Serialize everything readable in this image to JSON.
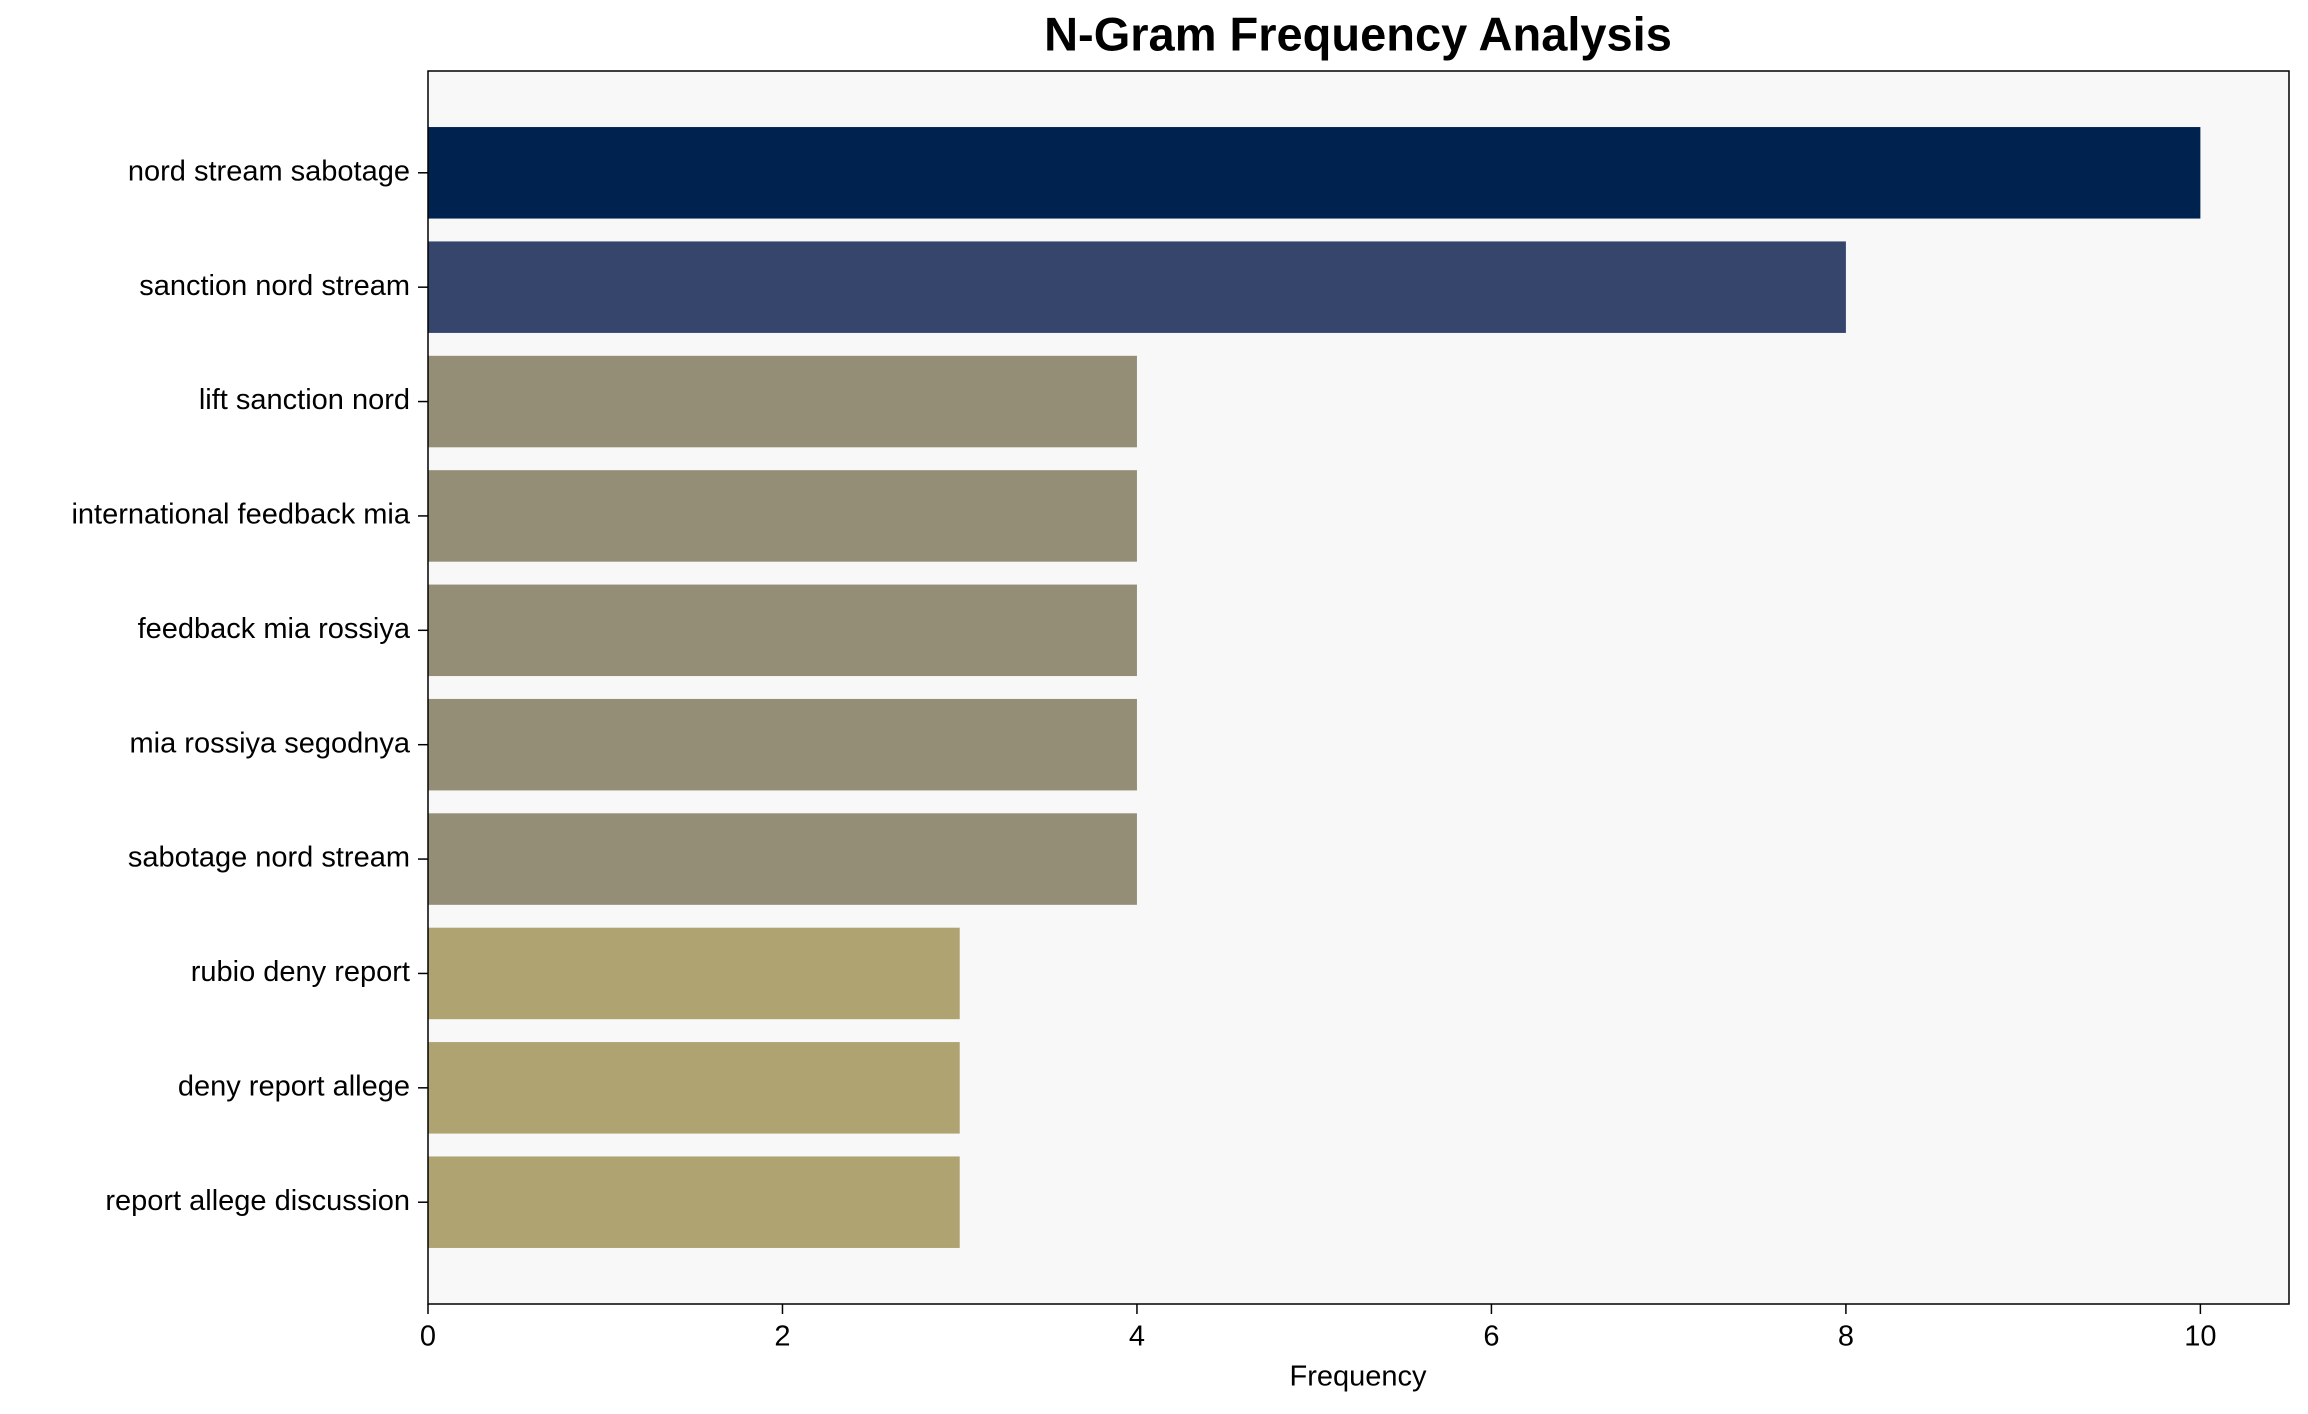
{
  "chart_data": {
    "type": "bar",
    "orientation": "horizontal",
    "title": "N-Gram Frequency Analysis",
    "x_label": "Frequency",
    "categories": [
      "nord stream sabotage",
      "sanction nord stream",
      "lift sanction nord",
      "international feedback mia",
      "feedback mia rossiya",
      "mia rossiya segodnya",
      "sabotage nord stream",
      "rubio deny report",
      "deny report allege",
      "report allege discussion"
    ],
    "values": [
      10,
      8,
      4,
      4,
      4,
      4,
      4,
      3,
      3,
      3
    ],
    "colors": [
      "#00224e",
      "#35456c",
      "#948e77",
      "#948e77",
      "#948e77",
      "#948e77",
      "#948e77",
      "#aea371",
      "#aea371",
      "#aea371"
    ],
    "xlim": [
      0,
      10.5
    ],
    "xticks": [
      0,
      2,
      4,
      6,
      8,
      10
    ]
  }
}
